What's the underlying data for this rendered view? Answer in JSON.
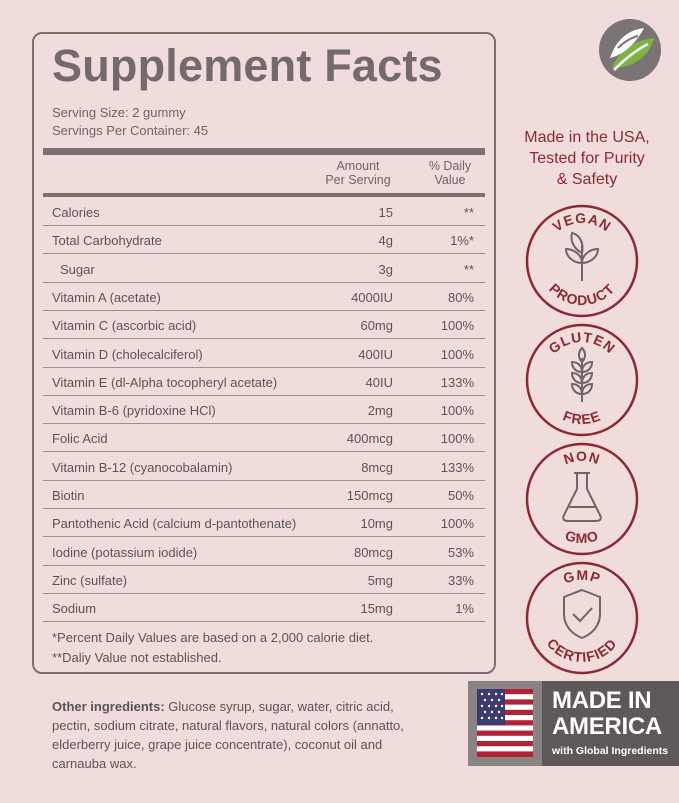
{
  "facts": {
    "title": "Supplement Facts",
    "serving_size": "Serving Size: 2 gummy",
    "servings_per_container": "Servings Per Container: 45",
    "col_amount_line1": "Amount",
    "col_amount_line2": "Per Serving",
    "col_dv_line1": "% Daily",
    "col_dv_line2": "Value",
    "rows": [
      {
        "name": "Calories",
        "amount": "15",
        "dv": "**"
      },
      {
        "name": "Total Carbohydrate",
        "amount": "4g",
        "dv": "1%*"
      },
      {
        "name": "Sugar",
        "amount": "3g",
        "dv": "**"
      },
      {
        "name": "Vitamin A (acetate)",
        "amount": "4000IU",
        "dv": "80%"
      },
      {
        "name": "Vitamin C (ascorbic acid)",
        "amount": "60mg",
        "dv": "100%"
      },
      {
        "name": "Vitamin D (cholecalciferol)",
        "amount": "400IU",
        "dv": "100%"
      },
      {
        "name": "Vitamin E (dl-Alpha tocopheryl acetate)",
        "amount": "40IU",
        "dv": "133%"
      },
      {
        "name": "Vitamin B-6 (pyridoxine HCl)",
        "amount": "2mg",
        "dv": "100%"
      },
      {
        "name": "Folic Acid",
        "amount": "400mcg",
        "dv": "100%"
      },
      {
        "name": "Vitamin B-12 (cyanocobalamin)",
        "amount": "8mcg",
        "dv": "133%"
      },
      {
        "name": "Biotin",
        "amount": "150mcg",
        "dv": "50%"
      },
      {
        "name": "Pantothenic Acid (calcium d-pantothenate)",
        "amount": "10mg",
        "dv": "100%"
      },
      {
        "name": "Iodine (potassium iodide)",
        "amount": "80mcg",
        "dv": "53%"
      },
      {
        "name": "Zinc (sulfate)",
        "amount": "5mg",
        "dv": "33%"
      },
      {
        "name": "Sodium",
        "amount": "15mg",
        "dv": "1%"
      }
    ],
    "footnote1": "*Percent Daily Values are based on a 2,000 calorie diet.",
    "footnote2": "**Daliy Value not established."
  },
  "made_in_usa": {
    "line1": "Made in the USA,",
    "line2": "Tested for Purity",
    "line3": "& Safety"
  },
  "badges": [
    {
      "top": "VEGAN",
      "bottom": "PRODUCT",
      "icon": "leaf-icon"
    },
    {
      "top": "GLUTEN",
      "bottom": "FREE",
      "icon": "wheat-icon"
    },
    {
      "top": "NON",
      "bottom": "GMO",
      "icon": "flask-icon"
    },
    {
      "top": "GMP",
      "bottom": "CERTIFIED",
      "icon": "shield-check-icon"
    }
  ],
  "other_ingredients": {
    "label": "Other ingredients:",
    "text": " Glucose syrup, sugar, water, citric acid, pectin, sodium citrate, natural flavors, natural colors (annatto, elderberry juice, grape juice concentrate), coconut oil and carnauba wax."
  },
  "made_in_america": {
    "line1": "MADE IN",
    "line2": "AMERICA",
    "line3": "with Global Ingredients"
  },
  "colors": {
    "background": "#f1dcdc",
    "panel_border": "#7b6f70",
    "title": "#746a6b",
    "accent": "#8c2a31",
    "logo_green": "#7cb342",
    "logo_gray": "#7b7374"
  }
}
